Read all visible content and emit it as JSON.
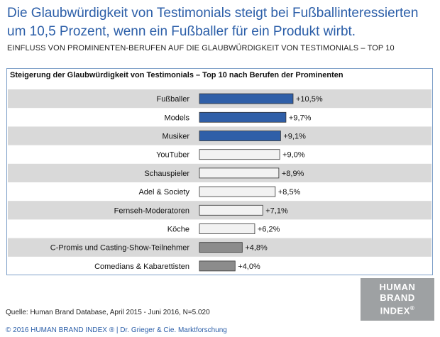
{
  "header": {
    "headline": "Die Glaubwürdigkeit von Testimonials steigt bei Fußballinteressierten um 10,5 Prozent, wenn ein Fußballer für ein Produkt wirbt.",
    "subhead": "EINFLUSS VON PROMINENTEN-BERUFEN  AUF DIE GLAUBWÜRDIGKEIT  VON TESTIMONIALS  – TOP 10"
  },
  "chart_data": {
    "type": "bar",
    "orientation": "horizontal",
    "title": "Steigerung der Glaubwürdigkeit von Testimonials – Top 10 nach Berufen der Prominenten",
    "categories": [
      "Fußballer",
      "Models",
      "Musiker",
      "YouTuber",
      "Schauspieler",
      "Adel & Society",
      "Fernseh-Moderatoren",
      "Köche",
      "C-Promis und Casting-Show-Teilnehmer",
      "Comedians & Kabarettisten"
    ],
    "values": [
      10.5,
      9.7,
      9.1,
      9.0,
      8.9,
      8.5,
      7.1,
      6.2,
      4.8,
      4.0
    ],
    "value_labels": [
      "+10,5%",
      "+9,7%",
      "+9,1%",
      "+9,0%",
      "+8,9%",
      "+8,5%",
      "+7,1%",
      "+6,2%",
      "+4,8%",
      "+4,0%"
    ],
    "bar_colors": [
      "#2f5fa8",
      "#2f5fa8",
      "#2f5fa8",
      "#f2f2f2",
      "#f2f2f2",
      "#f2f2f2",
      "#f2f2f2",
      "#f2f2f2",
      "#8c8c8c",
      "#8c8c8c"
    ],
    "stripe_color": "#d9d9d9",
    "xlim": [
      0,
      11
    ],
    "grid": false,
    "legend": "none"
  },
  "logo": {
    "line1": "HUMAN",
    "line2": "BRAND",
    "line3": "INDEX",
    "reg": "®"
  },
  "source": "Quelle: Human Brand Database, April 2015 - Juni 2016, N=5.020",
  "footer": "© 2016 HUMAN BRAND INDEX  ® | Dr. Grieger & Cie. Marktforschung"
}
